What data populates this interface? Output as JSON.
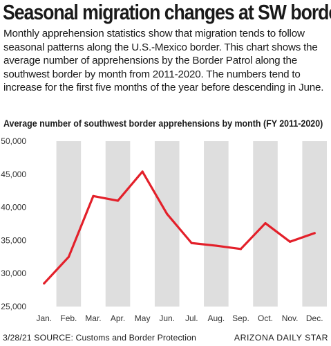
{
  "headline": "Seasonal migration changes at SW border",
  "description": "Monthly apprehension statistics show that migration tends to follow seasonal patterns along the U.S.-Mexico border. This chart shows the average number of apprehensions by the Border Patrol along the southwest border by month from 2011-2020. The numbers tend to increase for the first five months of the year before descending in June.",
  "footer": {
    "date": "3/28/21",
    "source": "SOURCE: Customs and Border Protection",
    "publisher": "ARIZONA DAILY STAR"
  },
  "colors": {
    "line": "#e3202a",
    "band": "#dedede",
    "text": "#1a1a1a"
  },
  "chart_data": {
    "type": "line",
    "title": "Average number of southwest border apprehensions by month (FY 2011-2020)",
    "xlabel": "",
    "ylabel": "",
    "categories": [
      "Jan.",
      "Feb.",
      "Mar.",
      "Apr.",
      "May",
      "Jun.",
      "Jul.",
      "Aug.",
      "Sep.",
      "Oct.",
      "Nov.",
      "Dec."
    ],
    "values": [
      28500,
      32500,
      41700,
      41000,
      45400,
      39000,
      34600,
      34200,
      33700,
      37600,
      34800,
      36100
    ],
    "ylim": [
      25000,
      50000
    ],
    "yticks": [
      25000,
      30000,
      35000,
      40000,
      45000,
      50000
    ],
    "ytick_labels": [
      "25,000",
      "30,000",
      "35,000",
      "40,000",
      "45,000",
      "50,000"
    ],
    "grid": false,
    "alternating_bands": true
  }
}
